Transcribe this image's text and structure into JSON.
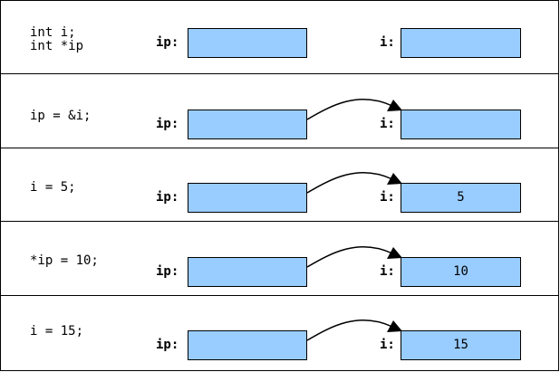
{
  "labels": {
    "pointer": "ip:",
    "variable": "i:"
  },
  "steps": [
    {
      "code": "int i;\nint *ip",
      "i_value": "",
      "has_arrow": false
    },
    {
      "code": "ip = &i;",
      "i_value": "",
      "has_arrow": true
    },
    {
      "code": "i = 5;",
      "i_value": "5",
      "has_arrow": true
    },
    {
      "code": "*ip = 10;",
      "i_value": "10",
      "has_arrow": true
    },
    {
      "code": "i = 15;",
      "i_value": "15",
      "has_arrow": true
    }
  ],
  "colors": {
    "box_fill": "#99ccff",
    "border": "#000000",
    "background": "#ffffff"
  }
}
